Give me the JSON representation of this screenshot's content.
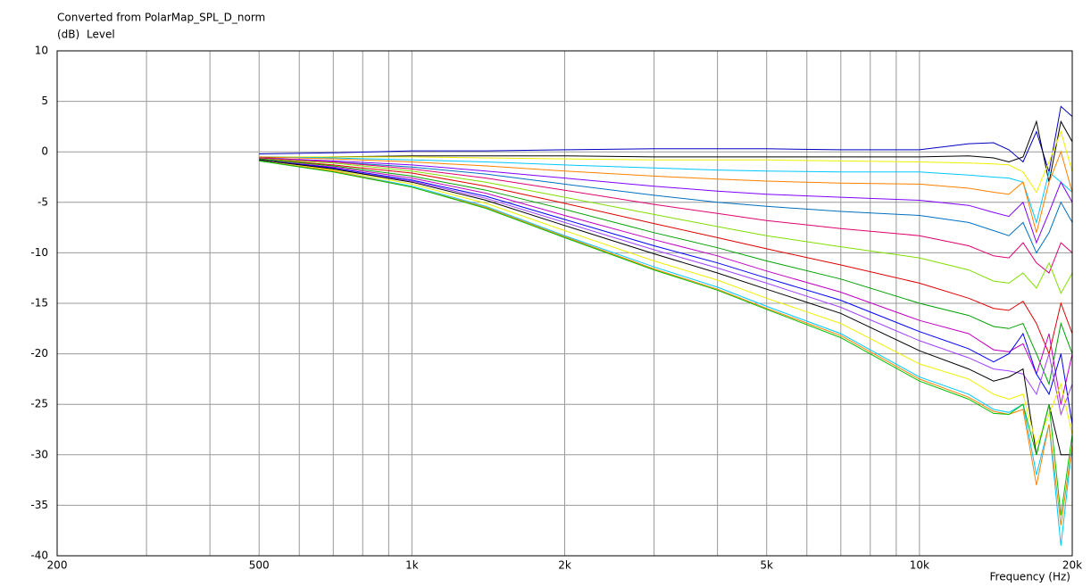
{
  "chart_data": {
    "type": "line",
    "title": "Converted from PolarMap_SPL_D_norm",
    "y_unit": "(dB)",
    "ylabel": "Level",
    "xlabel": "Frequency (Hz)",
    "xscale": "log",
    "grid": true,
    "xlim": [
      200,
      20000
    ],
    "ylim": [
      -40,
      10
    ],
    "xticks": [
      200,
      500,
      {
        "value": 1000,
        "label": "1k"
      },
      {
        "value": 2000,
        "label": "2k"
      },
      {
        "value": 5000,
        "label": "5k"
      },
      {
        "value": 10000,
        "label": "10k"
      },
      {
        "value": 20000,
        "label": "20k"
      }
    ],
    "xminorticks": [
      300,
      400,
      600,
      700,
      800,
      900,
      3000,
      4000,
      6000,
      7000,
      8000,
      9000
    ],
    "yticks": [
      10,
      5,
      0,
      -5,
      -10,
      -15,
      -20,
      -25,
      -30,
      -35,
      -40
    ],
    "x": [
      500,
      700,
      1000,
      1400,
      2000,
      3000,
      4000,
      5000,
      7000,
      10000,
      12500,
      14000,
      15000,
      16000,
      17000,
      18000,
      19000,
      20000
    ],
    "series": [
      {
        "color": "#0000c0",
        "values": [
          -0.2,
          -0.1,
          0.1,
          0.1,
          0.2,
          0.3,
          0.3,
          0.3,
          0.2,
          0.2,
          0.8,
          0.9,
          0.2,
          -1,
          2,
          -2,
          4.5,
          3.5
        ]
      },
      {
        "color": "#000000",
        "values": [
          -0.6,
          -0.5,
          -0.4,
          -0.4,
          -0.4,
          -0.5,
          -0.5,
          -0.5,
          -0.5,
          -0.5,
          -0.4,
          -0.6,
          -1,
          -0.5,
          3,
          -3,
          3,
          1
        ]
      },
      {
        "color": "#f0f000",
        "values": [
          -0.5,
          -0.5,
          -0.5,
          -0.6,
          -0.7,
          -0.8,
          -0.8,
          -0.8,
          -0.9,
          -1,
          -1.1,
          -1.2,
          -1.3,
          -2,
          -4,
          -1,
          2,
          -2
        ]
      },
      {
        "color": "#00c8ff",
        "values": [
          -0.5,
          -0.6,
          -0.8,
          -1,
          -1.3,
          -1.6,
          -1.8,
          -1.9,
          -2,
          -2,
          -2.3,
          -2.5,
          -2.6,
          -3,
          -7,
          -2,
          -3,
          -4
        ]
      },
      {
        "color": "#ff8000",
        "values": [
          -0.5,
          -0.7,
          -1,
          -1.4,
          -1.9,
          -2.4,
          -2.7,
          -2.9,
          -3.1,
          -3.2,
          -3.6,
          -4,
          -4.2,
          -3,
          -8,
          -3,
          0,
          -4
        ]
      },
      {
        "color": "#8000ff",
        "values": [
          -0.6,
          -0.9,
          -1.3,
          -1.9,
          -2.6,
          -3.4,
          -3.9,
          -4.2,
          -4.5,
          -4.8,
          -5.3,
          -6,
          -6.4,
          -5,
          -9,
          -6,
          -3,
          -5
        ]
      },
      {
        "color": "#0070c0",
        "values": [
          -0.6,
          -1,
          -1.5,
          -2.2,
          -3.2,
          -4.3,
          -5,
          -5.4,
          -5.9,
          -6.3,
          -7,
          -7.8,
          -8.3,
          -7,
          -10,
          -8,
          -5,
          -7
        ]
      },
      {
        "color": "#e00070",
        "values": [
          -0.6,
          -1,
          -1.7,
          -2.6,
          -3.8,
          -5.2,
          -6.1,
          -6.8,
          -7.6,
          -8.3,
          -9.3,
          -10.3,
          -10.5,
          -9,
          -11,
          -12,
          -9,
          -10
        ]
      },
      {
        "color": "#80e000",
        "values": [
          -0.7,
          -1.1,
          -1.9,
          -3,
          -4.5,
          -6.2,
          -7.4,
          -8.3,
          -9.4,
          -10.5,
          -11.7,
          -12.8,
          -13,
          -12,
          -13.5,
          -11,
          -14,
          -12
        ]
      },
      {
        "color": "#e00000",
        "values": [
          -0.7,
          -1.3,
          -2.1,
          -3.4,
          -5.1,
          -7.1,
          -8.5,
          -9.6,
          -11.2,
          -13,
          -14.5,
          -15.5,
          -15.7,
          -14.8,
          -17,
          -20,
          -15,
          -18
        ]
      },
      {
        "color": "#00a000",
        "values": [
          -0.7,
          -1.4,
          -2.4,
          -3.8,
          -5.7,
          -8,
          -9.5,
          -10.8,
          -12.6,
          -15,
          -16.2,
          -17.3,
          -17.5,
          -17,
          -20,
          -23,
          -17,
          -20
        ]
      },
      {
        "color": "#c000c0",
        "values": [
          -0.8,
          -1.5,
          -2.6,
          -4.1,
          -6.3,
          -8.7,
          -10.3,
          -11.8,
          -13.9,
          -16.7,
          -18,
          -19.6,
          -19.8,
          -19,
          -22,
          -18,
          -25,
          -20
        ]
      },
      {
        "color": "#0000ff",
        "values": [
          -0.8,
          -1.6,
          -2.8,
          -4.4,
          -6.7,
          -9.3,
          -11,
          -12.5,
          -14.7,
          -17.8,
          -19.5,
          -20.8,
          -20,
          -18,
          -22,
          -24,
          -20,
          -27
        ]
      },
      {
        "color": "#a040ff",
        "values": [
          -0.8,
          -1.7,
          -2.9,
          -4.6,
          -7,
          -9.7,
          -11.5,
          -13,
          -15.4,
          -18.7,
          -20.4,
          -21.5,
          -21.7,
          -22,
          -24,
          -20,
          -26,
          -23
        ]
      },
      {
        "color": "#000000",
        "values": [
          -0.8,
          -1.7,
          -3,
          -4.8,
          -7.3,
          -10.1,
          -12,
          -13.6,
          -16,
          -19.7,
          -21.5,
          -22.7,
          -22.3,
          -21.5,
          -30,
          -25,
          -30,
          -30
        ]
      },
      {
        "color": "#f0f000",
        "values": [
          -0.9,
          -1.8,
          -3.2,
          -5.1,
          -7.8,
          -10.8,
          -12.7,
          -14.5,
          -17,
          -21,
          -22.5,
          -24,
          -24.5,
          -24,
          -29,
          -26,
          -23,
          -28
        ]
      },
      {
        "color": "#00c8ff",
        "values": [
          -0.9,
          -1.9,
          -3.4,
          -5.4,
          -8.3,
          -11.4,
          -13.4,
          -15.3,
          -18,
          -22.3,
          -24,
          -25.5,
          -25.8,
          -25,
          -32,
          -27,
          -39,
          -29
        ]
      },
      {
        "color": "#ff8000",
        "values": [
          -0.9,
          -1.9,
          -3.5,
          -5.5,
          -8.4,
          -11.6,
          -13.6,
          -15.5,
          -18.2,
          -22.5,
          -24.3,
          -25.7,
          -26,
          -25.5,
          -33,
          -27,
          -37,
          -29
        ]
      },
      {
        "color": "#00c000",
        "values": [
          -0.9,
          -2,
          -3.5,
          -5.6,
          -8.5,
          -11.7,
          -13.7,
          -15.6,
          -18.4,
          -22.7,
          -24.5,
          -25.9,
          -26,
          -25,
          -30,
          -25,
          -36,
          -28
        ]
      }
    ]
  }
}
